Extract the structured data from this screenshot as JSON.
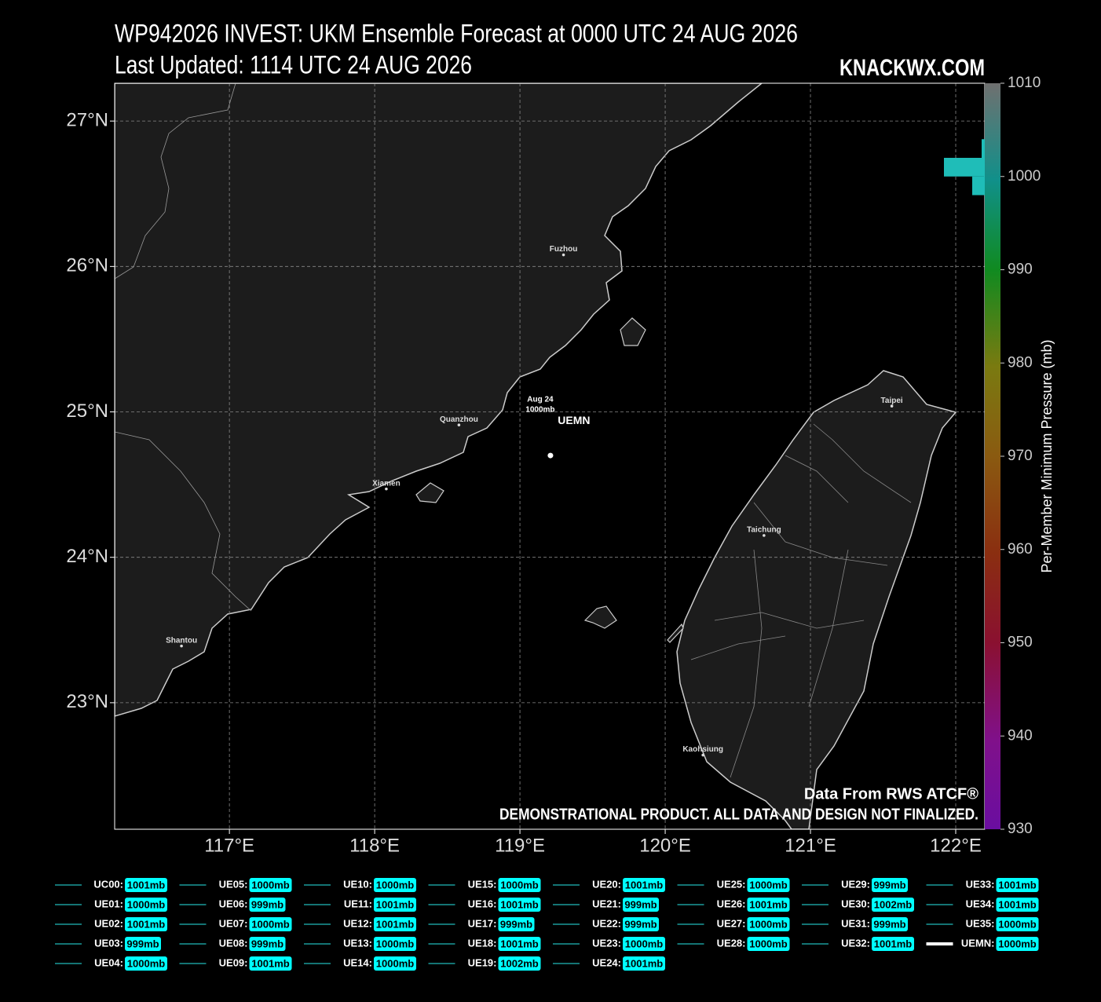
{
  "header": {
    "title": "WP942026 INVEST: UKM Ensemble Forecast at 0000 UTC 24 AUG 2026",
    "subtitle": "Last Updated: 1114 UTC 24 AUG 2026",
    "brand": "KNACKWX.COM"
  },
  "map": {
    "lonlim": [
      116.21,
      122.2
    ],
    "latlim": [
      22.13,
      27.26
    ],
    "lat_ticks": [
      {
        "value": 23,
        "label": "23°N"
      },
      {
        "value": 24,
        "label": "24°N"
      },
      {
        "value": 25,
        "label": "25°N"
      },
      {
        "value": 26,
        "label": "26°N"
      },
      {
        "value": 27,
        "label": "27°N"
      }
    ],
    "lon_ticks": [
      {
        "value": 117,
        "label": "117°E"
      },
      {
        "value": 118,
        "label": "118°E"
      },
      {
        "value": 119,
        "label": "119°E"
      },
      {
        "value": 120,
        "label": "120°E"
      },
      {
        "value": 121,
        "label": "121°E"
      },
      {
        "value": 122,
        "label": "122°E"
      }
    ],
    "grid": true,
    "cities": [
      {
        "name": "Fuzhou",
        "lon": 119.3,
        "lat": 26.08
      },
      {
        "name": "Quanzhou",
        "lon": 118.58,
        "lat": 24.91
      },
      {
        "name": "Xiamen",
        "lon": 118.08,
        "lat": 24.47
      },
      {
        "name": "Shantou",
        "lon": 116.67,
        "lat": 23.39
      },
      {
        "name": "Taipei",
        "lon": 121.56,
        "lat": 25.04
      },
      {
        "name": "Taichung",
        "lon": 120.68,
        "lat": 24.15
      },
      {
        "name": "Kaohsiung",
        "lon": 120.26,
        "lat": 22.64
      }
    ],
    "storm": {
      "lon": 119.21,
      "lat": 24.7,
      "date": "Aug 24",
      "pressure_label": "1000mb",
      "name": "UEMN"
    },
    "credit": "Data From RWS ATCF®",
    "disclaimer": "DEMONSTRATIONAL PRODUCT. ALL DATA AND DESIGN NOT FINALIZED."
  },
  "colorbar": {
    "lim": [
      930,
      1010
    ],
    "ticks": [
      930,
      940,
      950,
      960,
      970,
      980,
      990,
      1000,
      1010
    ],
    "label": "Per-Member Minimum Pressure (mb)",
    "hist_color": "#1fbdb8",
    "hist_bin": 2
  },
  "legend": {
    "member_color": "#1a9a9a",
    "mean_color": "#ffffff",
    "name_color": "#00e5f0",
    "box_color": "#00ffff",
    "series": [
      {
        "name": "UC00:",
        "value": 1001,
        "label": "1001mb"
      },
      {
        "name": "UE01:",
        "value": 1000,
        "label": "1000mb"
      },
      {
        "name": "UE02:",
        "value": 1001,
        "label": "1001mb"
      },
      {
        "name": "UE03:",
        "value": 999,
        "label": "999mb"
      },
      {
        "name": "UE04:",
        "value": 1000,
        "label": "1000mb"
      },
      {
        "name": "UE05:",
        "value": 1000,
        "label": "1000mb"
      },
      {
        "name": "UE06:",
        "value": 999,
        "label": "999mb"
      },
      {
        "name": "UE07:",
        "value": 1000,
        "label": "1000mb"
      },
      {
        "name": "UE08:",
        "value": 999,
        "label": "999mb"
      },
      {
        "name": "UE09:",
        "value": 1001,
        "label": "1001mb"
      },
      {
        "name": "UE10:",
        "value": 1000,
        "label": "1000mb"
      },
      {
        "name": "UE11:",
        "value": 1001,
        "label": "1001mb"
      },
      {
        "name": "UE12:",
        "value": 1001,
        "label": "1001mb"
      },
      {
        "name": "UE13:",
        "value": 1000,
        "label": "1000mb"
      },
      {
        "name": "UE14:",
        "value": 1000,
        "label": "1000mb"
      },
      {
        "name": "UE15:",
        "value": 1000,
        "label": "1000mb"
      },
      {
        "name": "UE16:",
        "value": 1001,
        "label": "1001mb"
      },
      {
        "name": "UE17:",
        "value": 999,
        "label": "999mb"
      },
      {
        "name": "UE18:",
        "value": 1001,
        "label": "1001mb"
      },
      {
        "name": "UE19:",
        "value": 1002,
        "label": "1002mb"
      },
      {
        "name": "UE20:",
        "value": 1001,
        "label": "1001mb"
      },
      {
        "name": "UE21:",
        "value": 999,
        "label": "999mb"
      },
      {
        "name": "UE22:",
        "value": 999,
        "label": "999mb"
      },
      {
        "name": "UE23:",
        "value": 1000,
        "label": "1000mb"
      },
      {
        "name": "UE24:",
        "value": 1001,
        "label": "1001mb"
      },
      {
        "name": "UE25:",
        "value": 1000,
        "label": "1000mb"
      },
      {
        "name": "UE26:",
        "value": 1001,
        "label": "1001mb"
      },
      {
        "name": "UE27:",
        "value": 1000,
        "label": "1000mb"
      },
      {
        "name": "UE28:",
        "value": 1000,
        "label": "1000mb"
      },
      {
        "name": "UE29:",
        "value": 999,
        "label": "999mb"
      },
      {
        "name": "UE30:",
        "value": 1002,
        "label": "1002mb"
      },
      {
        "name": "UE31:",
        "value": 999,
        "label": "999mb"
      },
      {
        "name": "UE32:",
        "value": 1001,
        "label": "1001mb"
      },
      {
        "name": "UE33:",
        "value": 1001,
        "label": "1001mb"
      },
      {
        "name": "UE34:",
        "value": 1001,
        "label": "1001mb"
      },
      {
        "name": "UE35:",
        "value": 1000,
        "label": "1000mb"
      },
      {
        "name": "UEMN:",
        "value": 1000,
        "label": "1000mb",
        "mean": true
      }
    ]
  }
}
